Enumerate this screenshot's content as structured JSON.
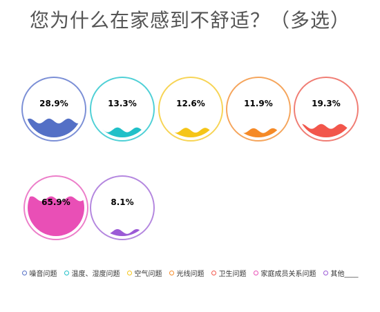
{
  "title": "您为什么在家感到不舒适？（多选）",
  "chart_data": {
    "type": "liquid-fill",
    "series": [
      {
        "name": "噪音问题",
        "value": 28.9,
        "label": "28.9%",
        "color": "#5470c6",
        "ring": "#7b8fd6"
      },
      {
        "name": "温度、湿度问题",
        "value": 13.3,
        "label": "13.3%",
        "color": "#20c0c8",
        "ring": "#4fd0d6"
      },
      {
        "name": "空气问题",
        "value": 12.6,
        "label": "12.6%",
        "color": "#f5c518",
        "ring": "#f7d455"
      },
      {
        "name": "光线问题",
        "value": 11.9,
        "label": "11.9%",
        "color": "#f58a27",
        "ring": "#f5a55c"
      },
      {
        "name": "卫生问题",
        "value": 19.3,
        "label": "19.3%",
        "color": "#f2564b",
        "ring": "#f07d74"
      },
      {
        "name": "家庭成员关系问题",
        "value": 65.9,
        "label": "65.9%",
        "color": "#e94fb6",
        "ring": "#ec7ec9"
      },
      {
        "name": "其他____",
        "value": 8.1,
        "label": "8.1%",
        "color": "#9b59d6",
        "ring": "#b487df"
      }
    ],
    "legend_position": "bottom"
  }
}
